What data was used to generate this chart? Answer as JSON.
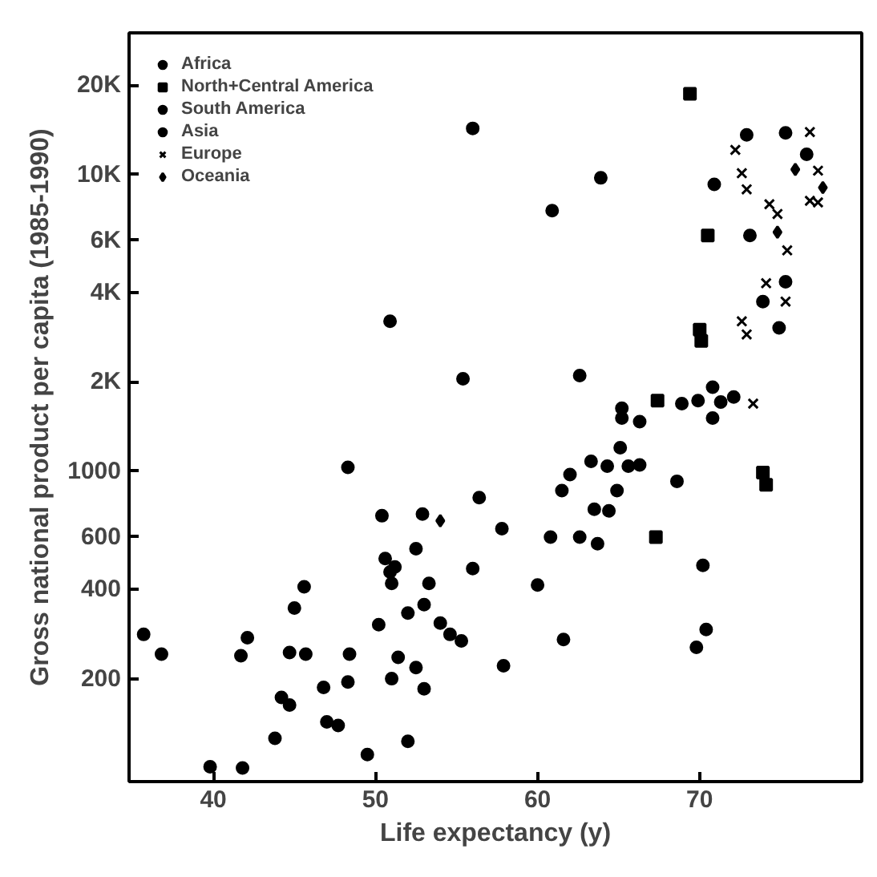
{
  "chart_data": {
    "type": "scatter",
    "xlabel": "Life expectancy (y)",
    "ylabel": "Gross national product per capita (1985-1990)",
    "log": "y",
    "grid": false,
    "legend": "top left",
    "xlim": [
      34.8,
      80
    ],
    "xticks": [
      40,
      50,
      60,
      70
    ],
    "ylim": [
      90,
      30000
    ],
    "yticks": [
      200,
      400,
      600,
      1000,
      {
        "value": 2000,
        "label": "2K"
      },
      {
        "value": 4000,
        "label": "4K"
      },
      {
        "value": 6000,
        "label": "6K"
      },
      {
        "value": 10000,
        "label": "10K"
      },
      {
        "value": 20000,
        "label": "20K"
      }
    ],
    "series": [
      {
        "name": "Africa",
        "color": "#000000",
        "marker": "circle",
        "x": [
          56.0,
          60.9,
          62.6,
          63.3,
          61.5,
          68.6,
          56.4,
          57.8,
          60.8,
          63.7,
          56.0,
          60.0,
          70.2,
          70.4,
          69.8,
          61.6,
          57.9,
          50.9,
          55.4,
          48.3,
          50.4,
          52.9,
          52.5,
          50.6,
          51.2,
          51.0,
          45.6,
          53.3,
          45.0,
          52.0,
          53.0,
          54.0,
          55.3,
          50.2,
          35.7,
          42.1,
          36.8,
          41.7,
          44.7,
          45.7,
          48.4,
          51.4,
          52.5,
          48.3,
          51.0,
          46.8,
          53.0,
          44.2,
          44.7,
          47.0,
          47.7,
          43.8,
          52.0,
          49.5,
          41.8,
          39.8
        ],
        "values": [
          14300,
          7550,
          2100,
          1080,
          860,
          925,
          815,
          640,
          600,
          570,
          470,
          414,
          482,
          293,
          255,
          271,
          221,
          3200,
          2050,
          1030,
          708,
          717,
          548,
          508,
          476,
          419,
          408,
          419,
          346,
          333,
          355,
          308,
          268,
          304,
          282,
          275,
          242,
          239,
          245,
          242,
          242,
          236,
          218,
          195,
          200,
          187,
          185,
          173,
          163,
          143,
          139,
          126,
          123,
          111,
          100,
          101
        ]
      },
      {
        "name": "North+Central America",
        "color": "#000000",
        "marker": "square",
        "x": [
          69.4,
          70.0,
          70.1,
          73.9,
          74.1,
          70.5,
          67.4,
          67.3
        ],
        "values": [
          18700,
          3000,
          2750,
          990,
          900,
          6230,
          1730,
          600
        ]
      },
      {
        "name": "South America",
        "color": "#000000",
        "marker": "circle",
        "x": [
          68.9,
          69.9,
          71.3,
          72.1,
          65.2,
          66.3,
          65.1,
          64.3,
          65.6,
          66.3,
          64.4
        ],
        "values": [
          1690,
          1730,
          1710,
          1780,
          1510,
          1470,
          1200,
          1040,
          1040,
          1050,
          735
        ]
      },
      {
        "name": "Asia",
        "color": "#000000",
        "marker": "circle",
        "x": [
          63.9,
          72.9,
          75.3,
          76.6,
          70.9,
          73.1,
          75.3,
          73.9,
          74.9,
          70.8,
          70.8,
          65.2,
          62.0,
          64.9,
          63.5,
          62.6,
          50.9,
          54.6
        ],
        "values": [
          9740,
          13600,
          13800,
          11700,
          9260,
          6230,
          4350,
          3730,
          3040,
          1920,
          1510,
          1630,
          975,
          860,
          745,
          600,
          458,
          282
        ]
      },
      {
        "name": "Europe",
        "color": "#000000",
        "marker": "cross",
        "x": [
          76.8,
          72.2,
          77.3,
          72.6,
          72.9,
          77.3,
          76.8,
          74.3,
          74.8,
          75.4,
          74.1,
          75.3,
          72.6,
          72.9,
          73.3
        ],
        "values": [
          13900,
          12100,
          10300,
          10100,
          8910,
          8050,
          8150,
          7940,
          7360,
          5550,
          4300,
          3730,
          3200,
          2890,
          1690
        ]
      },
      {
        "name": "Oceania",
        "color": "#000000",
        "marker": "diamond",
        "x": [
          75.9,
          77.6,
          74.8,
          54.0
        ],
        "values": [
          10400,
          9030,
          6390,
          681
        ]
      }
    ]
  }
}
